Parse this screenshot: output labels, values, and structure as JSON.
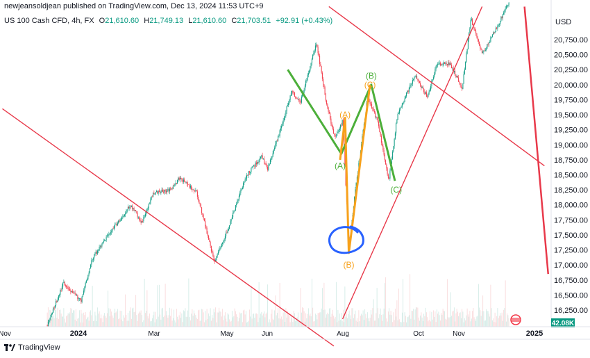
{
  "header": {
    "text": "newjeansoldjean published on TradingView.com, Dec 13, 2024 11:53 UTC+9"
  },
  "legend": {
    "symbol": "US 100 Cash CFD, 4h, FX",
    "o_label": "O",
    "o": "21,610.60",
    "h_label": "H",
    "h": "21,749.13",
    "l_label": "L",
    "l": "21,610.60",
    "c_label": "C",
    "c": "21,703.51",
    "change": "+92.91 (+0.43%)"
  },
  "currency": "USD",
  "volume_label": "42.08K",
  "brand": "TradingView",
  "colors": {
    "up": "#089981",
    "down": "#f23645",
    "trend": "#e8394a",
    "green_wave": "#4caf3a",
    "orange_wave": "#f7a11b",
    "circle": "#2962ff"
  },
  "chart_data": {
    "type": "line",
    "title": "US 100 Cash CFD, 4h, FX",
    "x_ticks": [
      "Nov",
      "2024",
      "Mar",
      "May",
      "Jun",
      "Aug",
      "Oct",
      "Nov",
      "2025"
    ],
    "y_ticks": [
      "20,750.00",
      "20,500.00",
      "20,250.00",
      "20,000.00",
      "19,750.00",
      "19,500.00",
      "19,250.00",
      "19,000.00",
      "18,750.00",
      "18,500.00",
      "18,250.00",
      "18,000.00",
      "17,750.00",
      "17,500.00",
      "17,250.00",
      "17,000.00",
      "16,750.00",
      "16,500.00",
      "16,250.00"
    ],
    "ylim": [
      16000,
      21300
    ],
    "price_path": [
      {
        "x": "2023-12-07",
        "y": 16000
      },
      {
        "x": "2023-12-20",
        "y": 16700
      },
      {
        "x": "2024-01-03",
        "y": 16400
      },
      {
        "x": "2024-01-12",
        "y": 17100
      },
      {
        "x": "2024-01-25",
        "y": 17500
      },
      {
        "x": "2024-02-05",
        "y": 17800
      },
      {
        "x": "2024-02-12",
        "y": 18000
      },
      {
        "x": "2024-02-21",
        "y": 17700
      },
      {
        "x": "2024-03-01",
        "y": 18200
      },
      {
        "x": "2024-03-15",
        "y": 18250
      },
      {
        "x": "2024-03-22",
        "y": 18450
      },
      {
        "x": "2024-04-05",
        "y": 18200
      },
      {
        "x": "2024-04-19",
        "y": 17050
      },
      {
        "x": "2024-04-30",
        "y": 17600
      },
      {
        "x": "2024-05-15",
        "y": 18500
      },
      {
        "x": "2024-05-27",
        "y": 18800
      },
      {
        "x": "2024-06-01",
        "y": 18600
      },
      {
        "x": "2024-06-12",
        "y": 19300
      },
      {
        "x": "2024-06-20",
        "y": 19900
      },
      {
        "x": "2024-06-27",
        "y": 19700
      },
      {
        "x": "2024-07-10",
        "y": 20700
      },
      {
        "x": "2024-07-18",
        "y": 19700
      },
      {
        "x": "2024-07-25",
        "y": 19100
      },
      {
        "x": "2024-07-31",
        "y": 19400
      },
      {
        "x": "2024-08-05",
        "y": 17300
      },
      {
        "x": "2024-08-10",
        "y": 18200
      },
      {
        "x": "2024-08-20",
        "y": 19800
      },
      {
        "x": "2024-08-28",
        "y": 19400
      },
      {
        "x": "2024-09-06",
        "y": 18400
      },
      {
        "x": "2024-09-13",
        "y": 19500
      },
      {
        "x": "2024-09-27",
        "y": 20150
      },
      {
        "x": "2024-10-07",
        "y": 19800
      },
      {
        "x": "2024-10-15",
        "y": 20350
      },
      {
        "x": "2024-10-25",
        "y": 20350
      },
      {
        "x": "2024-11-04",
        "y": 19950
      },
      {
        "x": "2024-11-11",
        "y": 21100
      },
      {
        "x": "2024-11-20",
        "y": 20500
      },
      {
        "x": "2024-12-03",
        "y": 21000
      },
      {
        "x": "2024-12-12",
        "y": 21400
      }
    ],
    "drawings": {
      "trendlines": [
        [
          {
            "x": "2023-11-01",
            "y": 19600
          },
          {
            "x": "2024-07-24",
            "y": 15650
          }
        ],
        [
          {
            "x": "2024-07-31",
            "y": 16100
          },
          {
            "x": "2024-11-20",
            "y": 21300
          }
        ],
        [
          {
            "x": "2024-07-20",
            "y": 21300
          },
          {
            "x": "2025-01-09",
            "y": 18650
          }
        ],
        [
          {
            "x": "2024-12-24",
            "y": 21300
          },
          {
            "x": "2025-01-12",
            "y": 16850
          }
        ]
      ],
      "green_wave": [
        {
          "x": "2024-06-17",
          "y": 20250
        },
        {
          "x": "2024-07-30",
          "y": 18850
        },
        {
          "x": "2024-08-23",
          "y": 20000
        },
        {
          "x": "2024-09-11",
          "y": 18400
        }
      ],
      "green_labels": [
        {
          "text": "(A)",
          "x": "2024-07-29",
          "y": 18650
        },
        {
          "text": "(B)",
          "x": "2024-08-23",
          "y": 20150
        },
        {
          "text": "(C)",
          "x": "2024-09-12",
          "y": 18250
        }
      ],
      "orange_wave": [
        {
          "x": "2024-07-29",
          "y": 18750
        },
        {
          "x": "2024-08-02",
          "y": 19450
        },
        {
          "x": "2024-08-05",
          "y": 17200
        },
        {
          "x": "2024-08-22",
          "y": 20000
        }
      ],
      "orange_labels": [
        {
          "text": "(A)",
          "x": "2024-08-02",
          "y": 19500
        },
        {
          "text": "(C)",
          "x": "2024-08-22",
          "y": 20000
        },
        {
          "text": "(B)",
          "x": "2024-08-05",
          "y": 17000
        }
      ]
    }
  }
}
